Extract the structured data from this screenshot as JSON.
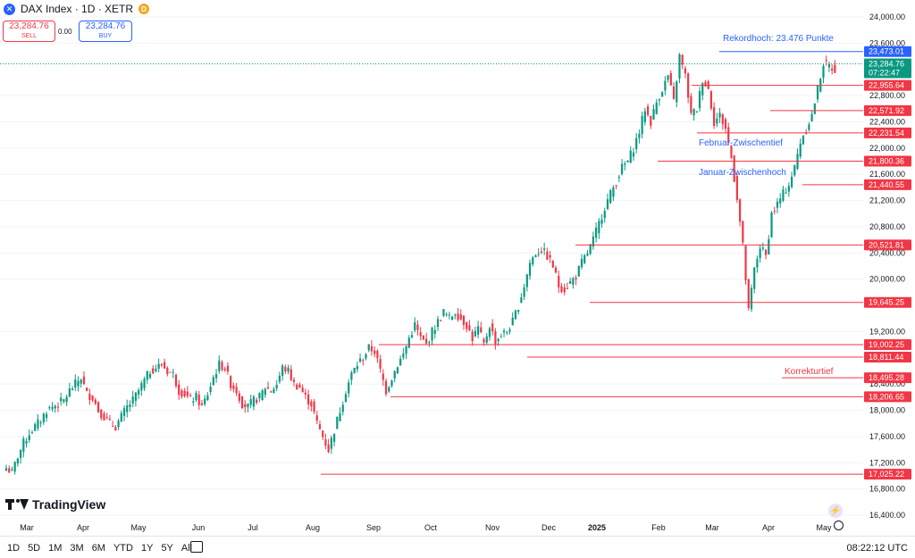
{
  "header": {
    "title": "DAX Index · 1D · XETR",
    "badge": "D",
    "sell_price": "23,284.76",
    "sell_label": "SELL",
    "spread": "0.00",
    "buy_price": "23,284.76",
    "buy_label": "BUY"
  },
  "branding": "TradingView",
  "bottom_bar": {
    "ranges": [
      "1D",
      "5D",
      "1M",
      "3M",
      "6M",
      "YTD",
      "1Y",
      "5Y",
      "All"
    ],
    "time": "08:22:12 UTC"
  },
  "colors": {
    "up": "#089981",
    "down": "#f23645",
    "blue": "#2962ff",
    "grid": "#f0f3fa"
  },
  "chart_data": {
    "type": "candlestick",
    "y_range": [
      16400,
      24000
    ],
    "y_ticks": [
      "24,000.00",
      "23,600.00",
      "22,800.00",
      "22,400.00",
      "22,000.00",
      "21,600.00",
      "21,200.00",
      "20,800.00",
      "20,400.00",
      "20,000.00",
      "19,200.00",
      "18,400.00",
      "18,000.00",
      "17,600.00",
      "17,200.00",
      "16,800.00",
      "16,400.00"
    ],
    "x_labels": [
      "Mar",
      "Apr",
      "May",
      "Jun",
      "Jul",
      "Aug",
      "Sep",
      "Oct",
      "Nov",
      "Dec",
      "2025",
      "Feb",
      "Mar",
      "Apr",
      "May"
    ],
    "current_price": {
      "value": 23284.76,
      "label": "23,284.76",
      "countdown": "07:22:47"
    },
    "levels": [
      {
        "value": 23473.01,
        "label": "23,473.01",
        "color": "blue"
      },
      {
        "value": 22955.64,
        "label": "22,955.64",
        "color": "red"
      },
      {
        "value": 22571.92,
        "label": "22,571.92",
        "color": "red"
      },
      {
        "value": 22231.54,
        "label": "22,231.54",
        "color": "red"
      },
      {
        "value": 21800.36,
        "label": "21,800.36",
        "color": "red"
      },
      {
        "value": 21440.55,
        "label": "21,440.55",
        "color": "red"
      },
      {
        "value": 20521.81,
        "label": "20,521.81",
        "color": "red"
      },
      {
        "value": 19645.25,
        "label": "19,645.25",
        "color": "red"
      },
      {
        "value": 19002.25,
        "label": "19,002.25",
        "color": "red"
      },
      {
        "value": 18811.44,
        "label": "18,811.44",
        "color": "red"
      },
      {
        "value": 18495.28,
        "label": "18,495.28",
        "color": "red"
      },
      {
        "value": 18206.65,
        "label": "18,206.65",
        "color": "red"
      },
      {
        "value": 17025.22,
        "label": "17,025.22",
        "color": "red"
      }
    ],
    "annotations": [
      {
        "text": "Rekordhoch: 23.476 Punkte",
        "color": "blue"
      },
      {
        "text": "Februar-Zwischentief",
        "color": "blue"
      },
      {
        "text": "Januar-Zwischenhoch",
        "color": "blue"
      },
      {
        "text": "Korrekturtief",
        "color": "red"
      }
    ],
    "close_path": [
      [
        0,
        17120
      ],
      [
        2,
        17050
      ],
      [
        4,
        17300
      ],
      [
        6,
        17500
      ],
      [
        8,
        17650
      ],
      [
        10,
        17750
      ],
      [
        12,
        17850
      ],
      [
        14,
        18000
      ],
      [
        16,
        18050
      ],
      [
        18,
        18100
      ],
      [
        20,
        18150
      ],
      [
        22,
        18300
      ],
      [
        24,
        18400
      ],
      [
        26,
        18500
      ],
      [
        28,
        18250
      ],
      [
        30,
        18200
      ],
      [
        32,
        18000
      ],
      [
        34,
        17900
      ],
      [
        36,
        17800
      ],
      [
        38,
        17750
      ],
      [
        40,
        17900
      ],
      [
        42,
        18050
      ],
      [
        44,
        18150
      ],
      [
        46,
        18300
      ],
      [
        48,
        18450
      ],
      [
        50,
        18600
      ],
      [
        52,
        18650
      ],
      [
        54,
        18700
      ],
      [
        56,
        18600
      ],
      [
        58,
        18550
      ],
      [
        60,
        18300
      ],
      [
        62,
        18250
      ],
      [
        64,
        18150
      ],
      [
        66,
        18200
      ],
      [
        68,
        18050
      ],
      [
        70,
        18250
      ],
      [
        72,
        18500
      ],
      [
        74,
        18700
      ],
      [
        76,
        18650
      ],
      [
        78,
        18400
      ],
      [
        80,
        18300
      ],
      [
        82,
        18100
      ],
      [
        84,
        18050
      ],
      [
        86,
        18150
      ],
      [
        88,
        18200
      ],
      [
        90,
        18350
      ],
      [
        92,
        18300
      ],
      [
        94,
        18400
      ],
      [
        96,
        18650
      ],
      [
        98,
        18600
      ],
      [
        100,
        18400
      ],
      [
        102,
        18350
      ],
      [
        104,
        18200
      ],
      [
        106,
        18100
      ],
      [
        108,
        17800
      ],
      [
        110,
        17600
      ],
      [
        112,
        17400
      ],
      [
        114,
        17700
      ],
      [
        116,
        18000
      ],
      [
        118,
        18300
      ],
      [
        120,
        18550
      ],
      [
        122,
        18700
      ],
      [
        124,
        18800
      ],
      [
        126,
        18950
      ],
      [
        128,
        18900
      ],
      [
        130,
        18600
      ],
      [
        132,
        18300
      ],
      [
        134,
        18500
      ],
      [
        136,
        18700
      ],
      [
        138,
        18850
      ],
      [
        140,
        19100
      ],
      [
        142,
        19300
      ],
      [
        144,
        19100
      ],
      [
        146,
        19000
      ],
      [
        148,
        19200
      ],
      [
        150,
        19350
      ],
      [
        152,
        19500
      ],
      [
        154,
        19400
      ],
      [
        156,
        19500
      ],
      [
        158,
        19400
      ],
      [
        160,
        19300
      ],
      [
        162,
        19100
      ],
      [
        164,
        19250
      ],
      [
        166,
        19000
      ],
      [
        168,
        19300
      ],
      [
        170,
        19050
      ],
      [
        172,
        19150
      ],
      [
        174,
        19200
      ],
      [
        176,
        19350
      ],
      [
        178,
        19600
      ],
      [
        180,
        19900
      ],
      [
        182,
        20250
      ],
      [
        184,
        20400
      ],
      [
        186,
        20450
      ],
      [
        188,
        20350
      ],
      [
        190,
        20200
      ],
      [
        192,
        19900
      ],
      [
        194,
        19850
      ],
      [
        196,
        19950
      ],
      [
        198,
        20050
      ],
      [
        200,
        20250
      ],
      [
        202,
        20400
      ],
      [
        204,
        20600
      ],
      [
        206,
        20850
      ],
      [
        208,
        21100
      ],
      [
        210,
        21300
      ],
      [
        212,
        21500
      ],
      [
        214,
        21700
      ],
      [
        216,
        21800
      ],
      [
        218,
        22000
      ],
      [
        220,
        22250
      ],
      [
        222,
        22600
      ],
      [
        224,
        22400
      ],
      [
        226,
        22700
      ],
      [
        228,
        22900
      ],
      [
        230,
        23100
      ],
      [
        232,
        22700
      ],
      [
        234,
        23400
      ],
      [
        236,
        23100
      ],
      [
        238,
        22500
      ],
      [
        240,
        22600
      ],
      [
        242,
        23050
      ],
      [
        244,
        22900
      ],
      [
        246,
        22400
      ],
      [
        248,
        22500
      ],
      [
        250,
        22300
      ],
      [
        252,
        21850
      ],
      [
        254,
        21250
      ],
      [
        256,
        20500
      ],
      [
        258,
        19500
      ],
      [
        260,
        20150
      ],
      [
        262,
        20500
      ],
      [
        264,
        20350
      ],
      [
        266,
        21000
      ],
      [
        268,
        21150
      ],
      [
        270,
        21300
      ],
      [
        272,
        21450
      ],
      [
        274,
        21700
      ],
      [
        276,
        22100
      ],
      [
        278,
        22300
      ],
      [
        280,
        22500
      ],
      [
        282,
        22900
      ],
      [
        284,
        23300
      ],
      [
        286,
        23250
      ],
      [
        288,
        23200
      ]
    ]
  }
}
